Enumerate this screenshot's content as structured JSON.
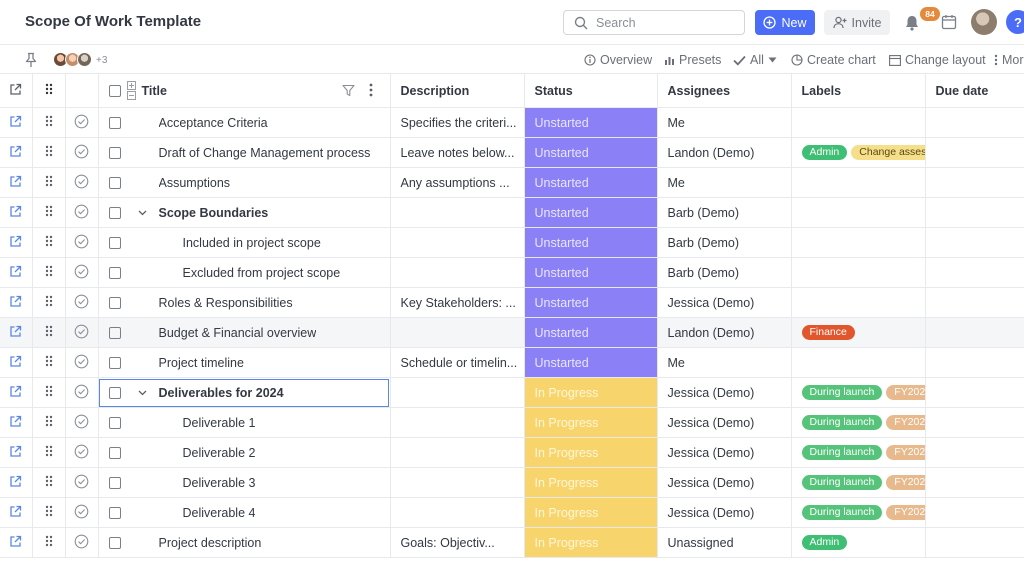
{
  "header": {
    "title": "Scope Of Work Template",
    "search_placeholder": "Search",
    "new_label": "New",
    "invite_label": "Invite",
    "notification_count": "84",
    "help_label": "?"
  },
  "toolbar": {
    "extra_members": "+3",
    "overview": "Overview",
    "presets": "Presets",
    "all": "All",
    "create_chart": "Create chart",
    "change_layout": "Change layout",
    "more": "More"
  },
  "columns": {
    "title": "Title",
    "description": "Description",
    "status": "Status",
    "assignees": "Assignees",
    "labels": "Labels",
    "due_date": "Due date"
  },
  "colors": {
    "accent": "#4a6cf7",
    "status_unstarted": "#8b80f5",
    "status_in_progress": "#f7d46c",
    "label_admin": "#3fbf74",
    "label_change": "#f5df8a",
    "label_finance": "#e0572d",
    "label_launch": "#55c47a",
    "label_fy": "#e8b98c"
  },
  "rows": [
    {
      "title": "Acceptance Criteria",
      "description": "Specifies the criteri...",
      "status": "Unstarted",
      "assignee": "Me",
      "labels": []
    },
    {
      "title": "Draft of Change Management process",
      "description": "Leave notes below...",
      "status": "Unstarted",
      "assignee": "Landon (Demo)",
      "labels": [
        "Admin",
        "Change asses"
      ]
    },
    {
      "title": "Assumptions",
      "description": "Any assumptions ...",
      "status": "Unstarted",
      "assignee": "Me",
      "labels": []
    },
    {
      "title": "Scope Boundaries",
      "description": "",
      "status": "Unstarted",
      "assignee": "Barb (Demo)",
      "labels": []
    },
    {
      "title": "Included in project scope",
      "description": "",
      "status": "Unstarted",
      "assignee": "Barb (Demo)",
      "labels": []
    },
    {
      "title": "Excluded from project scope",
      "description": "",
      "status": "Unstarted",
      "assignee": "Barb (Demo)",
      "labels": []
    },
    {
      "title": "Roles & Responsibilities",
      "description": "Key Stakeholders: ...",
      "status": "Unstarted",
      "assignee": "Jessica (Demo)",
      "labels": []
    },
    {
      "title": "Budget & Financial overview",
      "description": "",
      "status": "Unstarted",
      "assignee": "Landon (Demo)",
      "labels": [
        "Finance"
      ]
    },
    {
      "title": "Project timeline",
      "description": "Schedule or timelin...",
      "status": "Unstarted",
      "assignee": "Me",
      "labels": []
    },
    {
      "title": "Deliverables for 2024",
      "description": "",
      "status": "In Progress",
      "assignee": "Jessica (Demo)",
      "labels": [
        "During launch",
        "FY202"
      ]
    },
    {
      "title": "Deliverable 1",
      "description": "",
      "status": "In Progress",
      "assignee": "Jessica (Demo)",
      "labels": [
        "During launch",
        "FY202"
      ]
    },
    {
      "title": "Deliverable 2",
      "description": "",
      "status": "In Progress",
      "assignee": "Jessica (Demo)",
      "labels": [
        "During launch",
        "FY202"
      ]
    },
    {
      "title": "Deliverable 3",
      "description": "",
      "status": "In Progress",
      "assignee": "Jessica (Demo)",
      "labels": [
        "During launch",
        "FY202"
      ]
    },
    {
      "title": "Deliverable 4",
      "description": "",
      "status": "In Progress",
      "assignee": "Jessica (Demo)",
      "labels": [
        "During launch",
        "FY202"
      ]
    },
    {
      "title": "Project description",
      "description": "Goals:      Objectiv...",
      "status": "In Progress",
      "assignee": "Unassigned",
      "labels": [
        "Admin"
      ]
    }
  ]
}
